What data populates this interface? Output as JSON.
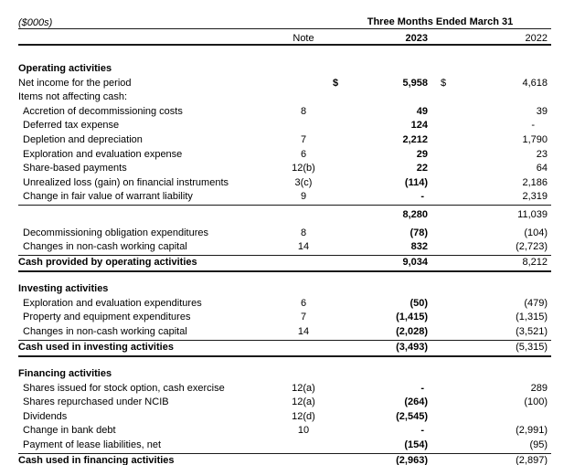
{
  "colors": {
    "text": "#000000",
    "rule": "#1a1a1a",
    "background": "#ffffff"
  },
  "header": {
    "units": "($000s)",
    "period": "Three Months Ended March 31",
    "note_col": "Note",
    "year_current": "2023",
    "year_prior": "2022"
  },
  "statement": {
    "rows": [
      {
        "type": "section",
        "label": "Operating activities"
      },
      {
        "type": "item",
        "label": "Net income for the period",
        "note": "",
        "cur23": "$",
        "v23": "5,958",
        "cur22": "$",
        "v22": "4,618",
        "indent": false
      },
      {
        "type": "item",
        "label": "Items not affecting cash:",
        "note": "",
        "v23": "",
        "v22": "",
        "indent": false
      },
      {
        "type": "item",
        "label": "Accretion of decommissioning costs",
        "note": "8",
        "v23": "49",
        "v22": "39",
        "indent": true
      },
      {
        "type": "item",
        "label": "Deferred tax expense",
        "note": "",
        "v23": "124",
        "v22": "-",
        "indent": true
      },
      {
        "type": "item",
        "label": "Depletion and depreciation",
        "note": "7",
        "v23": "2,212",
        "v22": "1,790",
        "indent": true
      },
      {
        "type": "item",
        "label": "Exploration and evaluation expense",
        "note": "6",
        "v23": "29",
        "v22": "23",
        "indent": true
      },
      {
        "type": "item",
        "label": "Share-based payments",
        "note": "12(b)",
        "v23": "22",
        "v22": "64",
        "indent": true
      },
      {
        "type": "item",
        "label": "Unrealized loss (gain) on financial instruments",
        "note": "3(c)",
        "v23": "(114)",
        "v22": "2,186",
        "indent": true
      },
      {
        "type": "item",
        "label": "Change in fair value of warrant liability",
        "note": "9",
        "v23": "-",
        "v22": "2,319",
        "indent": true,
        "rule_below": "thin"
      },
      {
        "type": "subtotal",
        "label": "",
        "note": "",
        "v23": "8,280",
        "v22": "11,039"
      },
      {
        "type": "item",
        "label": "Decommissioning obligation expenditures",
        "note": "8",
        "v23": "(78)",
        "v22": "(104)",
        "indent": true
      },
      {
        "type": "item",
        "label": "Changes in non-cash working capital",
        "note": "14",
        "v23": "832",
        "v22": "(2,723)",
        "indent": true,
        "rule_below": "thin"
      },
      {
        "type": "total",
        "label": "Cash provided by operating activities",
        "note": "",
        "v23": "9,034",
        "v22": "8,212"
      },
      {
        "type": "gap"
      },
      {
        "type": "section",
        "label": "Investing activities"
      },
      {
        "type": "item",
        "label": "Exploration and evaluation expenditures",
        "note": "6",
        "v23": "(50)",
        "v22": "(479)",
        "indent": true
      },
      {
        "type": "item",
        "label": "Property and equipment expenditures",
        "note": "7",
        "v23": "(1,415)",
        "v22": "(1,315)",
        "indent": true
      },
      {
        "type": "item",
        "label": "Changes in non-cash working capital",
        "note": "14",
        "v23": "(2,028)",
        "v22": "(3,521)",
        "indent": true,
        "rule_below": "thin"
      },
      {
        "type": "total",
        "label": "Cash used in investing activities",
        "note": "",
        "v23": "(3,493)",
        "v22": "(5,315)"
      },
      {
        "type": "gap"
      },
      {
        "type": "section",
        "label": "Financing activities"
      },
      {
        "type": "item",
        "label": "Shares issued for stock option, cash exercise",
        "note": "12(a)",
        "v23": "-",
        "v22": "289",
        "indent": true
      },
      {
        "type": "item",
        "label": "Shares repurchased under NCIB",
        "note": "12(a)",
        "v23": "(264)",
        "v22": "(100)",
        "indent": true
      },
      {
        "type": "item",
        "label": "Dividends",
        "note": "12(d)",
        "v23": "(2,545)",
        "v22": "",
        "indent": true
      },
      {
        "type": "item",
        "label": "Change in bank debt",
        "note": "10",
        "v23": "-",
        "v22": "(2,991)",
        "indent": true
      },
      {
        "type": "item",
        "label": "Payment of lease liabilities, net",
        "note": "",
        "v23": "(154)",
        "v22": "(95)",
        "indent": true,
        "rule_below": "thin"
      },
      {
        "type": "total",
        "label": "Cash used in financing activities",
        "note": "",
        "v23": "(2,963)",
        "v22": "(2,897)"
      }
    ]
  }
}
